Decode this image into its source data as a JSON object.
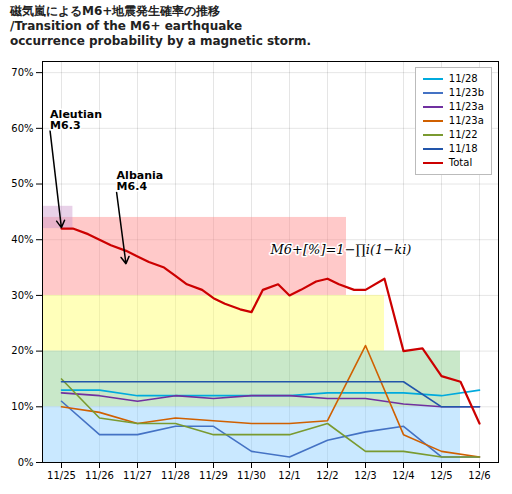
{
  "chart_data": {
    "type": "line",
    "title": "磁気嵐によるM6+地震発生確率の推移\n/Transition of the M6+ earthquake\noccurrence probability by a magnetic storm.",
    "xlim": [
      -0.5,
      11.5
    ],
    "xticks": [
      {
        "value": 0,
        "label": "11/25"
      },
      {
        "value": 1,
        "label": "11/26"
      },
      {
        "value": 2,
        "label": "11/27"
      },
      {
        "value": 3,
        "label": "11/28"
      },
      {
        "value": 4,
        "label": "11/29"
      },
      {
        "value": 5,
        "label": "11/30"
      },
      {
        "value": 6,
        "label": "12/1"
      },
      {
        "value": 7,
        "label": "12/2"
      },
      {
        "value": 8,
        "label": "12/3"
      },
      {
        "value": 9,
        "label": "12/4"
      },
      {
        "value": 10,
        "label": "12/5"
      },
      {
        "value": 11,
        "label": "12/6"
      }
    ],
    "ylim": [
      0,
      0.72
    ],
    "yticks": [
      {
        "value": 0.0,
        "label": "0%"
      },
      {
        "value": 0.1,
        "label": "10%"
      },
      {
        "value": 0.2,
        "label": "20%"
      },
      {
        "value": 0.3,
        "label": "30%"
      },
      {
        "value": 0.4,
        "label": "40%"
      },
      {
        "value": 0.5,
        "label": "50%"
      },
      {
        "value": 0.6,
        "label": "60%"
      },
      {
        "value": 0.7,
        "label": "70%"
      }
    ],
    "grid": true,
    "legend": "upper right",
    "bands": [
      {
        "x1": -0.5,
        "x2": 7.5,
        "y1": 0.3,
        "y2": 0.44,
        "color": "#ff8888"
      },
      {
        "x1": -0.5,
        "x2": 8.5,
        "y1": 0.2,
        "y2": 0.3,
        "color": "#ffff66"
      },
      {
        "x1": -0.5,
        "x2": 10.5,
        "y1": 0.1,
        "y2": 0.2,
        "color": "#88cc88"
      },
      {
        "x1": -0.5,
        "x2": 10.5,
        "y1": 0.0,
        "y2": 0.1,
        "color": "#88ccff"
      },
      {
        "x1": -0.5,
        "x2": 0.3,
        "y1": 0.42,
        "y2": 0.46,
        "color": "#cc99cc"
      }
    ],
    "series": [
      {
        "name": "11/28",
        "color": "#00aadd",
        "x": [
          0,
          1,
          2,
          3,
          4,
          5,
          6,
          7,
          8,
          9,
          10,
          11
        ],
        "values": [
          0.13,
          0.13,
          0.12,
          0.12,
          0.12,
          0.12,
          0.12,
          0.125,
          0.125,
          0.125,
          0.12,
          0.13
        ]
      },
      {
        "name": "11/23b",
        "color": "#4472c4",
        "x": [
          0,
          1,
          2,
          3,
          4,
          5,
          6,
          7,
          8,
          9,
          10,
          11
        ],
        "values": [
          0.11,
          0.05,
          0.05,
          0.065,
          0.065,
          0.02,
          0.01,
          0.04,
          0.055,
          0.065,
          0.01,
          0.01
        ]
      },
      {
        "name": "11/23a",
        "color": "#7030a0",
        "x": [
          0,
          1,
          2,
          3,
          4,
          5,
          6,
          7,
          8,
          9,
          10,
          11
        ],
        "values": [
          0.125,
          0.12,
          0.11,
          0.12,
          0.115,
          0.12,
          0.12,
          0.115,
          0.115,
          0.105,
          0.1,
          0.1
        ]
      },
      {
        "name": "11/23a",
        "color": "#d06000",
        "x": [
          0,
          1,
          2,
          3,
          4,
          5,
          6,
          7,
          8,
          9,
          10,
          11
        ],
        "values": [
          0.1,
          0.09,
          0.07,
          0.08,
          0.075,
          0.07,
          0.07,
          0.075,
          0.21,
          0.05,
          0.02,
          0.01
        ]
      },
      {
        "name": "11/22",
        "color": "#7a9a30",
        "x": [
          0,
          1,
          2,
          3,
          4,
          5,
          6,
          7,
          8,
          9,
          10,
          11
        ],
        "values": [
          0.15,
          0.08,
          0.07,
          0.07,
          0.05,
          0.05,
          0.05,
          0.07,
          0.02,
          0.02,
          0.01,
          0.01
        ]
      },
      {
        "name": "11/18",
        "color": "#2255aa",
        "x": [
          0,
          1,
          2,
          3,
          4,
          5,
          6,
          7,
          8,
          9,
          10,
          11
        ],
        "values": [
          0.145,
          0.145,
          0.145,
          0.145,
          0.145,
          0.145,
          0.145,
          0.145,
          0.145,
          0.145,
          0.1,
          0.1
        ]
      },
      {
        "name": "Total",
        "color": "#cc0000",
        "x": [
          0,
          0.3,
          0.7,
          1,
          1.3,
          1.7,
          2,
          2.3,
          2.7,
          3,
          3.3,
          3.7,
          4,
          4.3,
          4.7,
          5,
          5.3,
          5.7,
          6,
          6.3,
          6.7,
          7,
          7.3,
          7.7,
          8,
          8.5,
          9,
          9.5,
          10,
          10.5,
          11
        ],
        "values": [
          0.42,
          0.42,
          0.41,
          0.4,
          0.39,
          0.38,
          0.37,
          0.36,
          0.35,
          0.335,
          0.32,
          0.31,
          0.295,
          0.285,
          0.275,
          0.27,
          0.31,
          0.32,
          0.3,
          0.31,
          0.325,
          0.33,
          0.32,
          0.31,
          0.31,
          0.33,
          0.2,
          0.205,
          0.155,
          0.145,
          0.07
        ]
      }
    ],
    "annotations": [
      {
        "text": "Aleutian\nM6.3",
        "x": 0.0,
        "y": 0.42,
        "text_x": -0.3,
        "text_y": 0.595
      },
      {
        "text": "Albania\nM6.4",
        "x": 1.7,
        "y": 0.355,
        "text_x": 1.45,
        "text_y": 0.485
      },
      {
        "text": "M6+[%]=1−∏i(1−ki)",
        "x": 5.5,
        "y": 0.375
      }
    ]
  }
}
